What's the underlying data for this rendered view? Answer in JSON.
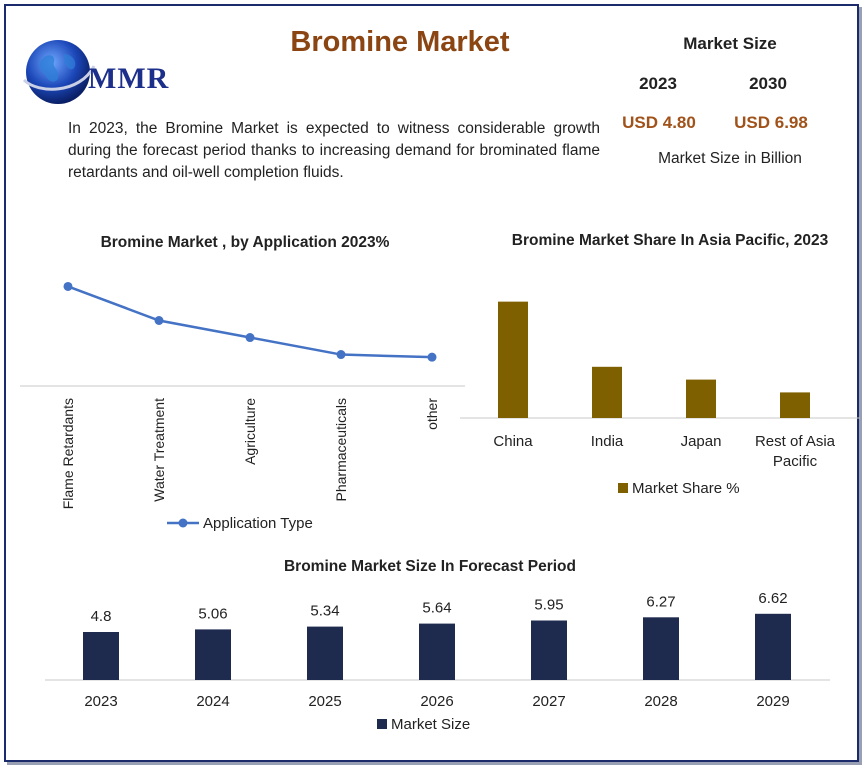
{
  "logo": {
    "text": "MMR"
  },
  "title": "Bromine Market",
  "intro": "In 2023, the Bromine Market is expected to witness considerable growth during the forecast period thanks to increasing demand for brominated flame retardants and oil-well completion fluids.",
  "market_size": {
    "heading": "Market Size",
    "year_a": "2023",
    "year_b": "2030",
    "value_a": "USD 4.80",
    "value_b": "USD 6.98",
    "unit": "Market Size in Billion"
  },
  "colors": {
    "line": "#4472c4",
    "olive": "#7f6000",
    "navy": "#1f2a4f",
    "title": "#8b4513",
    "value": "#a0521a"
  },
  "chart_data": [
    {
      "type": "line",
      "title": "Bromine Market , by Application 2023%",
      "categories": [
        "Flame Retardants",
        "Water Treatment",
        "Agriculture",
        "Pharmaceuticals",
        "other"
      ],
      "series": [
        {
          "name": "Application Type",
          "values": [
            38,
            25,
            18.5,
            12,
            11
          ]
        }
      ],
      "ylim": [
        0,
        50
      ],
      "legend": "bottom",
      "grid": false
    },
    {
      "type": "bar",
      "title": "Bromine Market Share In Asia Pacific, 2023",
      "categories": [
        "China",
        "India",
        "Japan",
        "Rest of Asia Pacific"
      ],
      "series": [
        {
          "name": "Market Share %",
          "values": [
            50,
            22,
            16.5,
            11
          ]
        }
      ],
      "ylim": [
        0,
        55
      ],
      "legend": "bottom",
      "grid": false
    },
    {
      "type": "bar",
      "title": "Bromine Market Size In Forecast Period",
      "categories": [
        "2023",
        "2024",
        "2025",
        "2026",
        "2027",
        "2028",
        "2029"
      ],
      "series": [
        {
          "name": "Market Size",
          "values": [
            4.8,
            5.06,
            5.34,
            5.64,
            5.95,
            6.27,
            6.62
          ]
        }
      ],
      "ylim": [
        0,
        6.9
      ],
      "legend": "bottom",
      "grid": false
    }
  ]
}
